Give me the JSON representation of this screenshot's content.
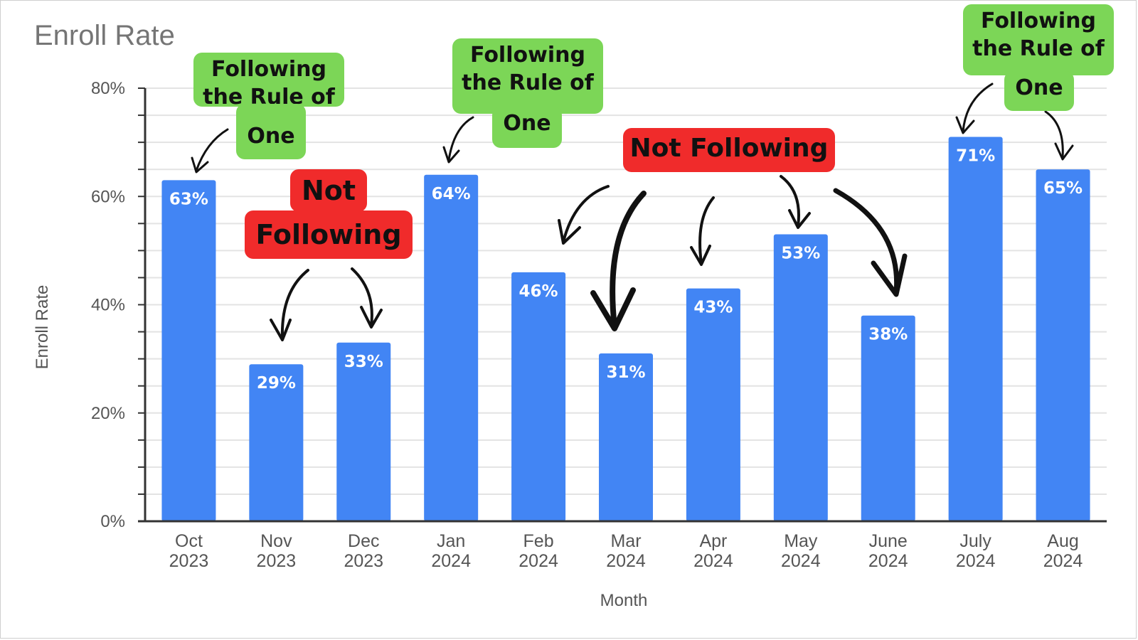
{
  "chart_data": {
    "type": "bar",
    "title": "Enroll Rate",
    "xlabel": "Month",
    "ylabel": "Enroll Rate",
    "ylim": [
      0,
      80
    ],
    "y_ticks": [
      "0%",
      "20%",
      "40%",
      "60%",
      "80%"
    ],
    "categories": [
      [
        "Oct",
        "2023"
      ],
      [
        "Nov",
        "2023"
      ],
      [
        "Dec",
        "2023"
      ],
      [
        "Jan",
        "2024"
      ],
      [
        "Feb",
        "2024"
      ],
      [
        "Mar",
        "2024"
      ],
      [
        "Apr",
        "2024"
      ],
      [
        "May",
        "2024"
      ],
      [
        "June",
        "2024"
      ],
      [
        "July",
        "2024"
      ],
      [
        "Aug",
        "2024"
      ]
    ],
    "values": [
      63,
      29,
      33,
      64,
      46,
      31,
      43,
      53,
      38,
      71,
      65
    ],
    "data_labels": [
      "63%",
      "29%",
      "33%",
      "64%",
      "46%",
      "31%",
      "43%",
      "53%",
      "38%",
      "71%",
      "65%"
    ],
    "bar_color": "#4285f4",
    "grid": true
  },
  "annotations": {
    "following_label": "Following the Rule of One",
    "following_lines": [
      "Following",
      "the Rule of",
      "One"
    ],
    "not_following_label": "Not Following",
    "not_following_split": [
      "Not",
      "Following"
    ],
    "following_color": "#7cd657",
    "not_following_color": "#f02b2b"
  }
}
